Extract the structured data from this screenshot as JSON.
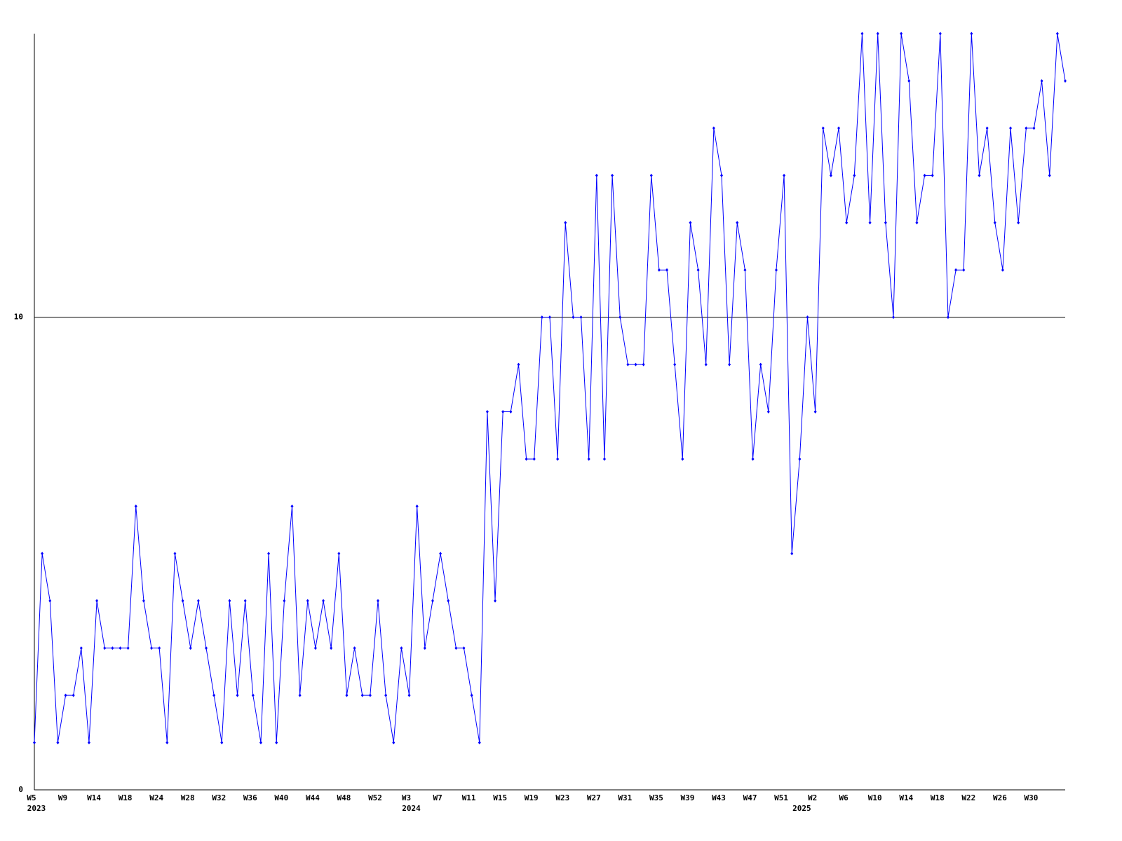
{
  "chart_data": {
    "type": "line",
    "categories": [
      "W5",
      null,
      null,
      null,
      "W9",
      null,
      null,
      null,
      "W14",
      null,
      null,
      null,
      "W18",
      null,
      null,
      null,
      "W24",
      null,
      null,
      null,
      "W28",
      null,
      null,
      null,
      "W32",
      null,
      null,
      null,
      "W36",
      null,
      null,
      null,
      "W40",
      null,
      null,
      null,
      "W44",
      null,
      null,
      null,
      "W48",
      null,
      null,
      null,
      "W52",
      null,
      null,
      null,
      "W3",
      null,
      null,
      null,
      "W7",
      null,
      null,
      null,
      "W11",
      null,
      null,
      null,
      "W15",
      null,
      null,
      null,
      "W19",
      null,
      null,
      null,
      "W23",
      null,
      null,
      null,
      "W27",
      null,
      null,
      null,
      "W31",
      null,
      null,
      null,
      "W35",
      null,
      null,
      null,
      "W39",
      null,
      null,
      null,
      "W43",
      null,
      null,
      null,
      "W47",
      null,
      null,
      null,
      "W51",
      null,
      null,
      null,
      "W2",
      null,
      null,
      null,
      "W6",
      null,
      null,
      null,
      "W10",
      null,
      null,
      null,
      "W14",
      null,
      null,
      null,
      "W18",
      null,
      null,
      null,
      "W22",
      null,
      null,
      null,
      "W26",
      null,
      null,
      null,
      "W30",
      null,
      null,
      null,
      null
    ],
    "years": [
      "2023",
      null,
      null,
      null,
      null,
      null,
      null,
      null,
      null,
      null,
      null,
      null,
      null,
      null,
      null,
      null,
      null,
      null,
      null,
      null,
      null,
      null,
      null,
      null,
      null,
      null,
      null,
      null,
      null,
      null,
      null,
      null,
      null,
      null,
      null,
      null,
      null,
      null,
      null,
      null,
      null,
      null,
      null,
      null,
      null,
      null,
      null,
      null,
      "2024",
      null,
      null,
      null,
      null,
      null,
      null,
      null,
      null,
      null,
      null,
      null,
      null,
      null,
      null,
      null,
      null,
      null,
      null,
      null,
      null,
      null,
      null,
      null,
      null,
      null,
      null,
      null,
      null,
      null,
      null,
      null,
      null,
      null,
      null,
      null,
      null,
      null,
      null,
      null,
      null,
      null,
      null,
      null,
      null,
      null,
      null,
      null,
      null,
      null,
      "2025",
      null,
      null,
      null,
      null,
      null,
      null,
      null,
      null,
      null,
      null,
      null,
      null,
      null,
      null,
      null,
      null,
      null,
      null,
      null,
      null,
      null,
      null,
      null,
      null,
      null,
      null,
      null,
      null,
      null,
      null,
      null
    ],
    "values": [
      1,
      5,
      4,
      1,
      2,
      2,
      3,
      1,
      4,
      3,
      3,
      3,
      3,
      6,
      4,
      3,
      3,
      1,
      5,
      4,
      3,
      4,
      3,
      2,
      1,
      4,
      2,
      4,
      2,
      1,
      5,
      1,
      4,
      6,
      2,
      4,
      3,
      4,
      3,
      5,
      2,
      3,
      2,
      2,
      4,
      2,
      1,
      3,
      2,
      6,
      3,
      4,
      5,
      4,
      3,
      3,
      2,
      1,
      8,
      4,
      8,
      8,
      9,
      7,
      7,
      10,
      10,
      7,
      12,
      10,
      10,
      7,
      13,
      7,
      13,
      10,
      9,
      9,
      9,
      13,
      11,
      11,
      9,
      7,
      12,
      11,
      9,
      14,
      13,
      9,
      12,
      11,
      7,
      9,
      8,
      11,
      13,
      5,
      7,
      10,
      8,
      14,
      13,
      14,
      12,
      13,
      16,
      12,
      16,
      12,
      10,
      16,
      15,
      12,
      13,
      13,
      16,
      10,
      11,
      11,
      16,
      13,
      14,
      12,
      11,
      14,
      12,
      14,
      14,
      15,
      13,
      16,
      15
    ],
    "color": "#0000ff",
    "ylim": [
      0,
      16
    ],
    "yticks": [
      0,
      10
    ],
    "grid": true
  }
}
